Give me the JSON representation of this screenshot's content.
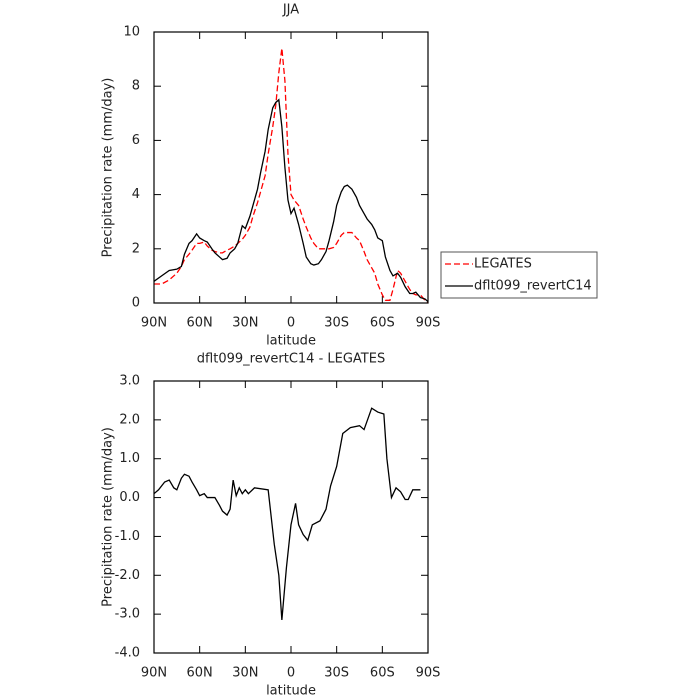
{
  "chart_data": [
    {
      "type": "line",
      "title": "JJA",
      "xlabel": "latitude",
      "ylabel": "Precipitation rate (mm/day)",
      "x": [
        90,
        85,
        80,
        75,
        72,
        70,
        67,
        65,
        62,
        60,
        57,
        55,
        52,
        50,
        47,
        45,
        42,
        40,
        37,
        35,
        32,
        30,
        27,
        25,
        22,
        20,
        17,
        15,
        12,
        10,
        8,
        6,
        4,
        2,
        0,
        -2,
        -5,
        -8,
        -10,
        -13,
        -15,
        -18,
        -20,
        -23,
        -25,
        -28,
        -30,
        -33,
        -35,
        -37,
        -40,
        -43,
        -45,
        -48,
        -50,
        -53,
        -55,
        -57,
        -60,
        -62,
        -65,
        -67,
        -70,
        -72,
        -75,
        -78,
        -80,
        -82,
        -85,
        -88,
        -90
      ],
      "series": [
        {
          "name": "LEGATES",
          "color": "#ff0000",
          "linestyle": "dashed",
          "values": [
            0.7,
            0.7,
            0.85,
            1.1,
            1.35,
            1.6,
            1.8,
            1.95,
            2.2,
            2.2,
            2.25,
            2.1,
            1.95,
            1.9,
            1.85,
            1.85,
            1.95,
            2.0,
            2.1,
            2.2,
            2.35,
            2.5,
            2.8,
            3.2,
            3.7,
            4.1,
            4.7,
            5.5,
            6.5,
            7.3,
            8.5,
            9.4,
            8.2,
            5.5,
            4.0,
            3.8,
            3.6,
            3.1,
            2.8,
            2.4,
            2.2,
            2.0,
            2.0,
            2.0,
            2.0,
            2.05,
            2.2,
            2.5,
            2.6,
            2.6,
            2.6,
            2.4,
            2.3,
            1.9,
            1.6,
            1.3,
            1.1,
            0.7,
            0.3,
            0.1,
            0.1,
            0.5,
            1.2,
            1.1,
            0.8,
            0.5,
            0.35,
            0.3,
            0.3,
            0.1,
            0.0
          ]
        },
        {
          "name": "dflt099_revertC14",
          "color": "#000000",
          "linestyle": "solid",
          "values": [
            0.8,
            1.0,
            1.2,
            1.25,
            1.35,
            1.8,
            2.2,
            2.3,
            2.55,
            2.4,
            2.3,
            2.25,
            2.0,
            1.85,
            1.7,
            1.6,
            1.65,
            1.85,
            2.0,
            2.2,
            2.85,
            2.75,
            3.2,
            3.6,
            4.2,
            4.8,
            5.6,
            6.4,
            7.2,
            7.4,
            7.5,
            6.5,
            5.0,
            3.8,
            3.3,
            3.5,
            2.9,
            2.2,
            1.7,
            1.45,
            1.4,
            1.45,
            1.6,
            1.9,
            2.3,
            3.0,
            3.6,
            4.1,
            4.3,
            4.35,
            4.2,
            3.9,
            3.6,
            3.3,
            3.1,
            2.9,
            2.7,
            2.4,
            2.3,
            1.7,
            1.2,
            1.0,
            1.1,
            0.95,
            0.6,
            0.35,
            0.35,
            0.4,
            0.2,
            0.15,
            0.05
          ]
        }
      ],
      "xlim": [
        90,
        -90
      ],
      "xticks": [
        {
          "value": 90,
          "label": "90N"
        },
        {
          "value": 60,
          "label": "60N"
        },
        {
          "value": 30,
          "label": "30N"
        },
        0,
        {
          "value": -30,
          "label": "30S"
        },
        {
          "value": -60,
          "label": "60S"
        },
        {
          "value": -90,
          "label": "90S"
        }
      ],
      "ylim": [
        0,
        10
      ],
      "yticks": [
        0,
        2,
        4,
        6,
        8,
        10
      ],
      "legend": "right"
    },
    {
      "type": "line",
      "title": "dflt099_revertC14 - LEGATES",
      "xlabel": "latitude",
      "ylabel": "Precipitation rate (mm/day)",
      "x": [
        90,
        87,
        83,
        80,
        77,
        75,
        72,
        70,
        67,
        65,
        62,
        60,
        57,
        55,
        50,
        47,
        45,
        42,
        40,
        38,
        36,
        34,
        32,
        30,
        28,
        24,
        15,
        11,
        8,
        6,
        3,
        0,
        -3,
        -5,
        -8,
        -11,
        -14,
        -19,
        -23,
        -26,
        -30,
        -34,
        -39,
        -45,
        -48,
        -53,
        -57,
        -61,
        -63,
        -66,
        -69,
        -72,
        -75,
        -77,
        -80,
        -85
      ],
      "series": [
        {
          "color": "#000000",
          "linestyle": "solid",
          "values": [
            0.1,
            0.2,
            0.4,
            0.45,
            0.25,
            0.2,
            0.5,
            0.6,
            0.55,
            0.4,
            0.2,
            0.05,
            0.1,
            0.0,
            0.0,
            -0.2,
            -0.35,
            -0.45,
            -0.3,
            0.45,
            0.05,
            0.25,
            0.1,
            0.2,
            0.1,
            0.25,
            0.2,
            -1.2,
            -2.0,
            -3.15,
            -1.8,
            -0.7,
            -0.15,
            -0.7,
            -0.95,
            -1.1,
            -0.7,
            -0.6,
            -0.3,
            0.3,
            0.8,
            1.65,
            1.8,
            1.85,
            1.75,
            2.3,
            2.2,
            2.15,
            1.0,
            0.0,
            0.25,
            0.15,
            -0.05,
            -0.05,
            0.2,
            0.2
          ]
        }
      ],
      "xlim": [
        90,
        -90
      ],
      "xticks": [
        {
          "value": 90,
          "label": "90N"
        },
        {
          "value": 60,
          "label": "60N"
        },
        {
          "value": 30,
          "label": "30N"
        },
        0,
        {
          "value": -30,
          "label": "30S"
        },
        {
          "value": -60,
          "label": "60S"
        },
        {
          "value": -90,
          "label": "90S"
        }
      ],
      "ylim": [
        -4,
        3
      ],
      "yticks": [
        {
          "value": -4,
          "label": "-4.0"
        },
        {
          "value": -3,
          "label": "-3.0"
        },
        {
          "value": -2,
          "label": "-2.0"
        },
        {
          "value": -1,
          "label": "-1.0"
        },
        {
          "value": 0,
          "label": "0.0"
        },
        {
          "value": 1,
          "label": "1.0"
        },
        {
          "value": 2,
          "label": "2.0"
        },
        {
          "value": 3,
          "label": "3.0"
        }
      ]
    }
  ]
}
